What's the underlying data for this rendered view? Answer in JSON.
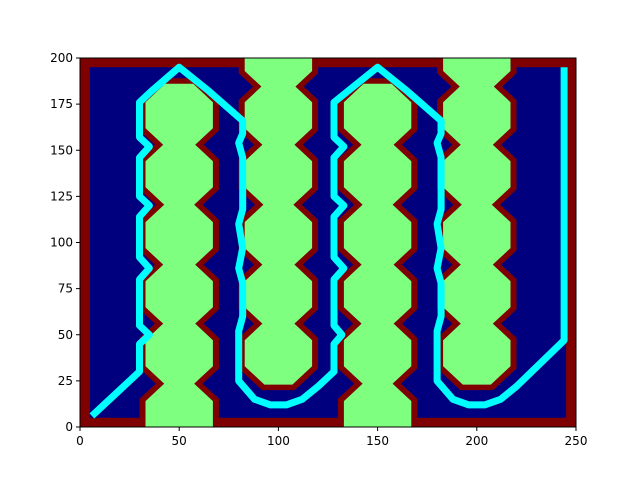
{
  "chart_data": {
    "type": "heatmap",
    "description_kind": "occupancy grid with planned path",
    "xlim": [
      0,
      250
    ],
    "ylim": [
      0,
      200
    ],
    "x_ticks": [
      0,
      50,
      100,
      150,
      200,
      250
    ],
    "y_ticks": [
      0,
      25,
      50,
      75,
      100,
      125,
      150,
      175,
      200
    ],
    "colors": {
      "free_space": "#00007f",
      "wall": "#7f0000",
      "obstacle": "#7fff7f",
      "path": "#00ffff"
    },
    "border": {
      "x": [
        0,
        250
      ],
      "y": [
        0,
        200
      ],
      "thickness": 5
    },
    "obstacles": {
      "radius": 17,
      "clearance_ring": 20,
      "centers": [
        [
          50,
          7
        ],
        [
          50,
          40
        ],
        [
          50,
          72
        ],
        [
          50,
          104
        ],
        [
          50,
          137
        ],
        [
          50,
          169
        ],
        [
          100,
          40
        ],
        [
          100,
          72
        ],
        [
          100,
          104
        ],
        [
          100,
          137
        ],
        [
          100,
          169
        ],
        [
          100,
          200
        ],
        [
          150,
          7
        ],
        [
          150,
          40
        ],
        [
          150,
          72
        ],
        [
          150,
          104
        ],
        [
          150,
          137
        ],
        [
          150,
          169
        ],
        [
          200,
          40
        ],
        [
          200,
          72
        ],
        [
          200,
          104
        ],
        [
          200,
          137
        ],
        [
          200,
          169
        ],
        [
          200,
          200
        ]
      ]
    },
    "path": [
      [
        6,
        6
      ],
      [
        30,
        30
      ],
      [
        30,
        45
      ],
      [
        35,
        50
      ],
      [
        30,
        55
      ],
      [
        30,
        80
      ],
      [
        35,
        86
      ],
      [
        30,
        92
      ],
      [
        30,
        114
      ],
      [
        35,
        120
      ],
      [
        30,
        125
      ],
      [
        30,
        146
      ],
      [
        35,
        152
      ],
      [
        30,
        157
      ],
      [
        30,
        176
      ],
      [
        36,
        182
      ],
      [
        50,
        195
      ],
      [
        65,
        182
      ],
      [
        82,
        166
      ],
      [
        82,
        159
      ],
      [
        80,
        154
      ],
      [
        82,
        146
      ],
      [
        82,
        118
      ],
      [
        80,
        110
      ],
      [
        82,
        97
      ],
      [
        80,
        86
      ],
      [
        82,
        78
      ],
      [
        82,
        60
      ],
      [
        80,
        52
      ],
      [
        80,
        25
      ],
      [
        88,
        15
      ],
      [
        96,
        12
      ],
      [
        104,
        12
      ],
      [
        112,
        15
      ],
      [
        120,
        22
      ],
      [
        128,
        30
      ],
      [
        128,
        45
      ],
      [
        132,
        50
      ],
      [
        128,
        55
      ],
      [
        128,
        80
      ],
      [
        133,
        86
      ],
      [
        128,
        92
      ],
      [
        128,
        114
      ],
      [
        133,
        120
      ],
      [
        128,
        125
      ],
      [
        128,
        146
      ],
      [
        133,
        152
      ],
      [
        128,
        157
      ],
      [
        128,
        176
      ],
      [
        135,
        182
      ],
      [
        150,
        195
      ],
      [
        165,
        182
      ],
      [
        182,
        166
      ],
      [
        182,
        159
      ],
      [
        180,
        154
      ],
      [
        182,
        146
      ],
      [
        182,
        118
      ],
      [
        180,
        110
      ],
      [
        182,
        97
      ],
      [
        180,
        86
      ],
      [
        182,
        78
      ],
      [
        182,
        60
      ],
      [
        180,
        52
      ],
      [
        180,
        25
      ],
      [
        188,
        15
      ],
      [
        196,
        12
      ],
      [
        204,
        12
      ],
      [
        212,
        15
      ],
      [
        220,
        22
      ],
      [
        244,
        47
      ],
      [
        244,
        195
      ]
    ]
  }
}
